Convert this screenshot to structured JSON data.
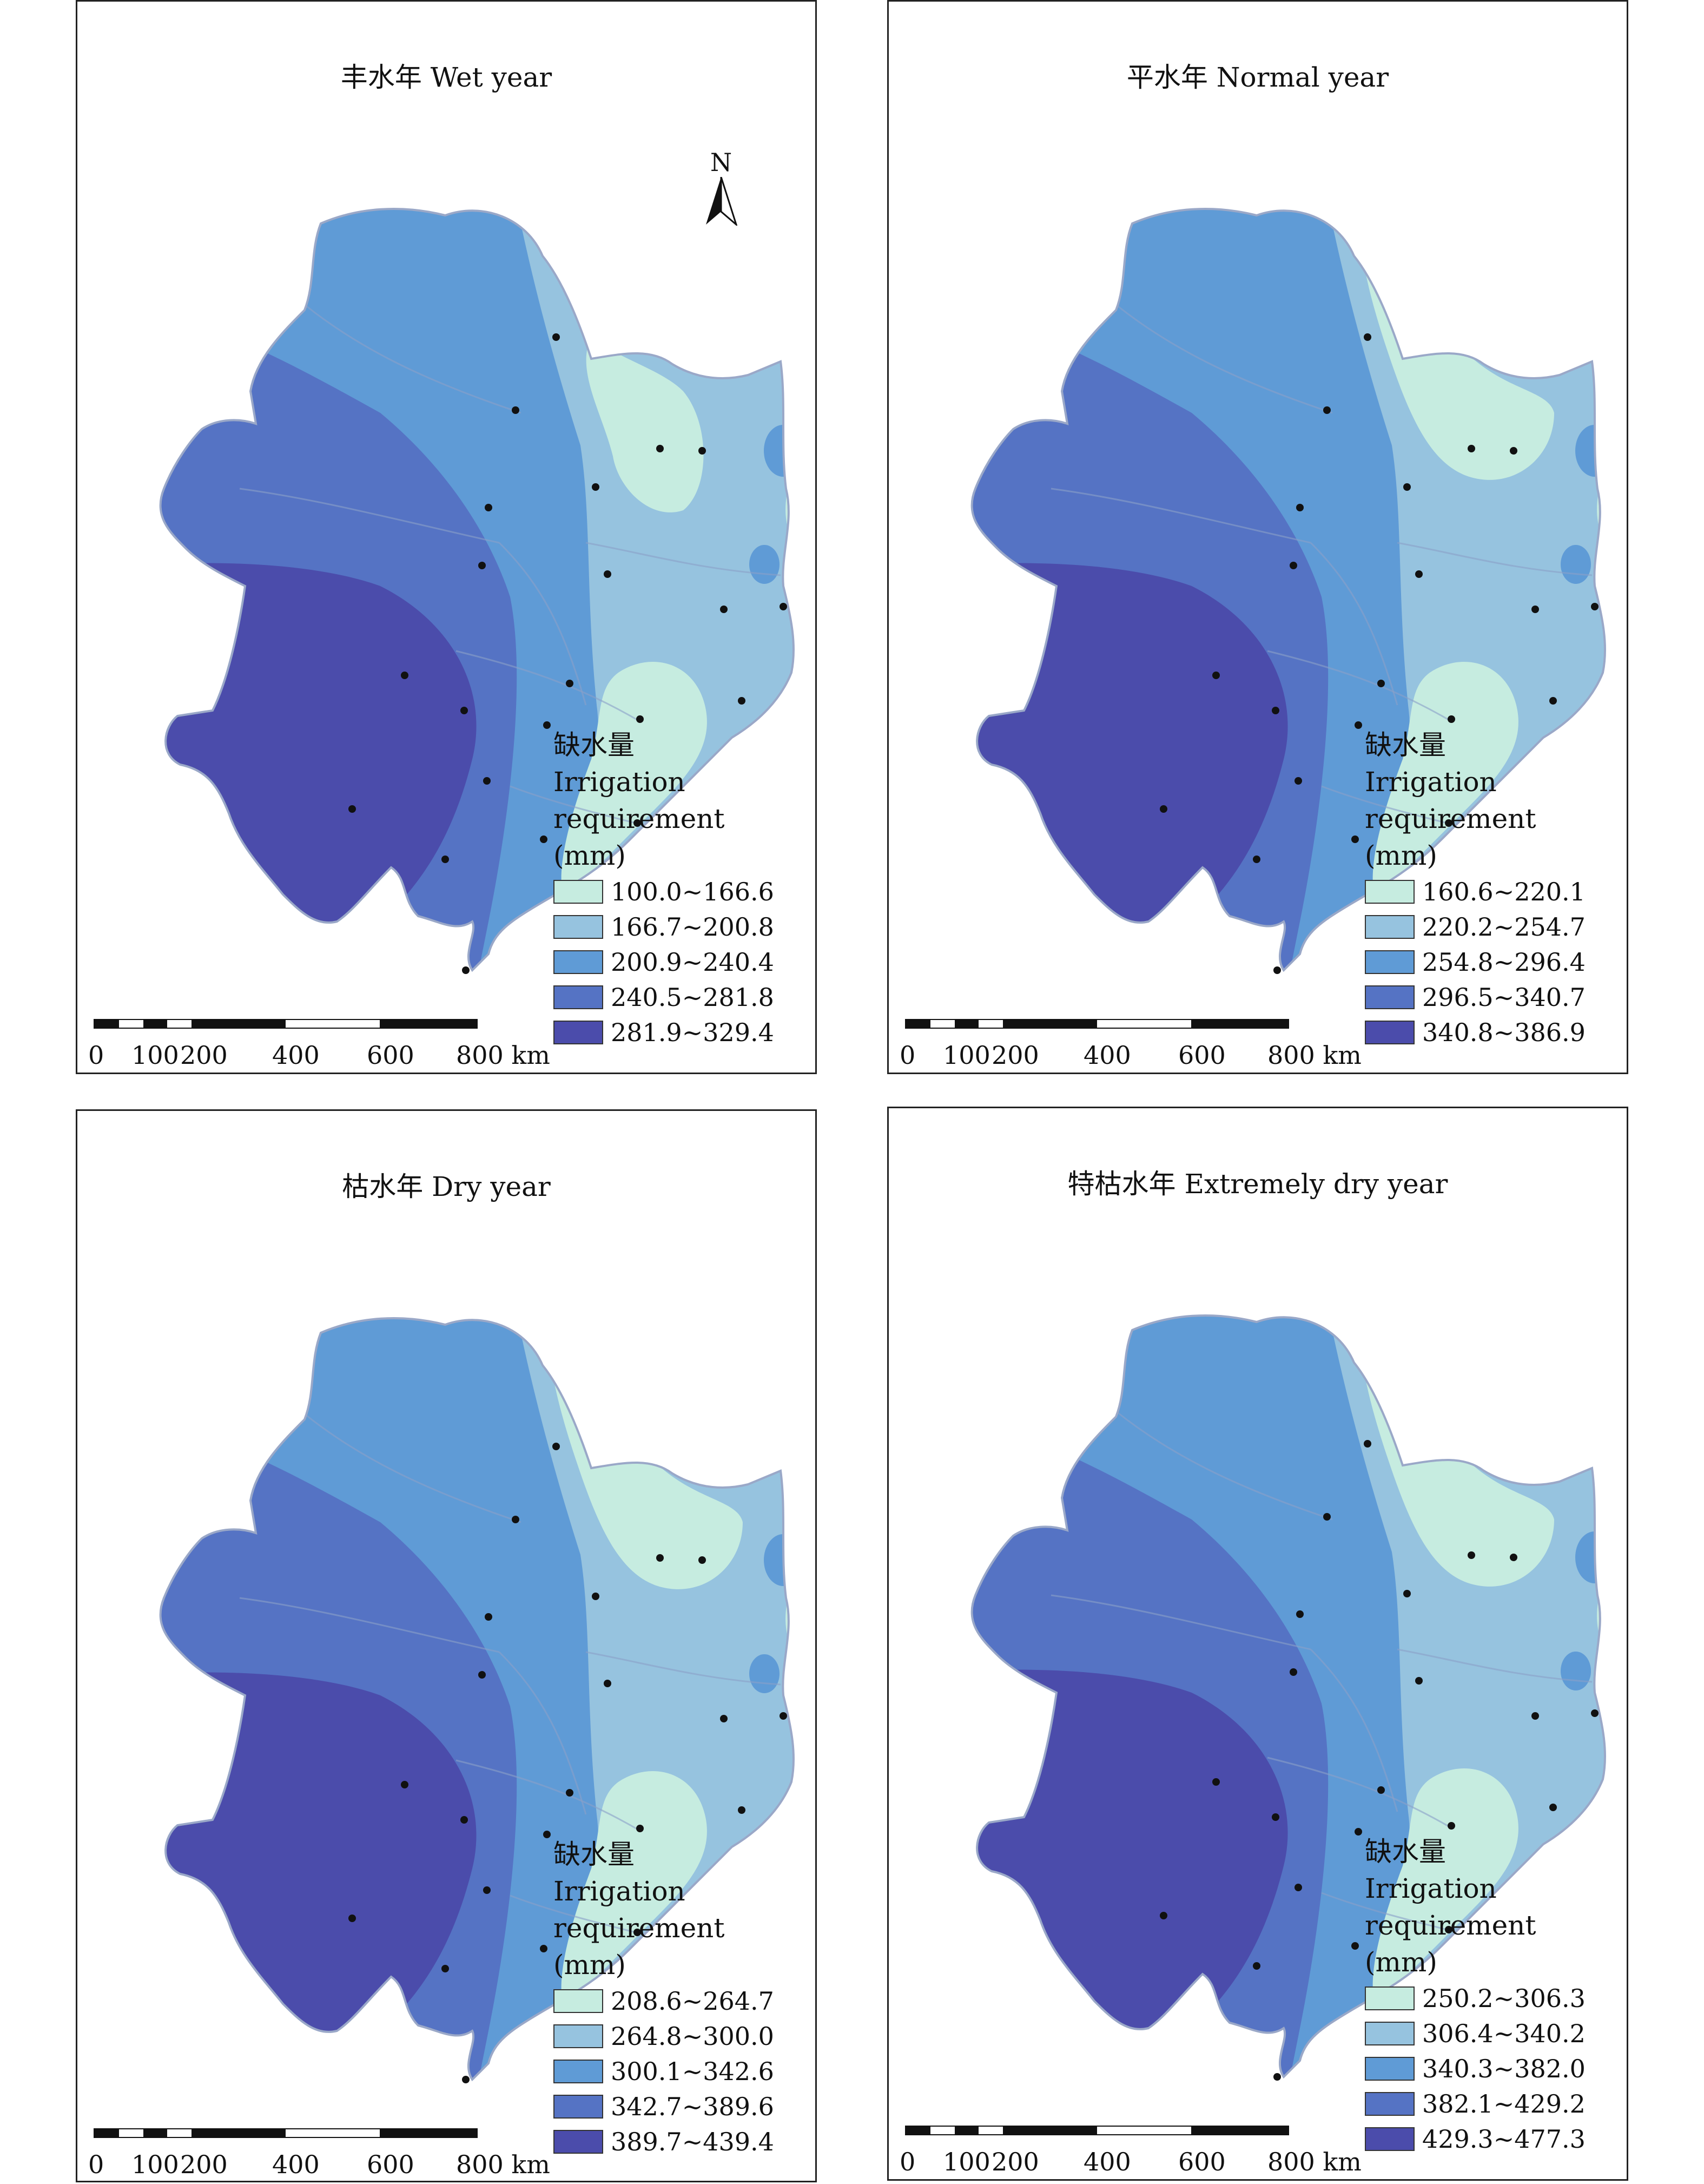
{
  "panels": [
    {
      "title": "丰水年 Wet year",
      "legend_title": [
        "缺水量",
        "Irrigation",
        "requirement",
        "(mm)"
      ],
      "classes": [
        "100.0~166.6",
        "166.7~200.8",
        "200.9~240.4",
        "240.5~281.8",
        "281.9~329.4"
      ],
      "show_north": true
    },
    {
      "title": "平水年 Normal year",
      "legend_title": [
        "缺水量",
        "Irrigation",
        "requirement",
        "(mm)"
      ],
      "classes": [
        "160.6~220.1",
        "220.2~254.7",
        "254.8~296.4",
        "296.5~340.7",
        "340.8~386.9"
      ],
      "show_north": false
    },
    {
      "title": "枯水年 Dry year",
      "legend_title": [
        "缺水量",
        "Irrigation",
        "requirement",
        "(mm)"
      ],
      "classes": [
        "208.6~264.7",
        "264.8~300.0",
        "300.1~342.6",
        "342.7~389.6",
        "389.7~439.4"
      ],
      "show_north": false
    },
    {
      "title": "特枯水年 Extremely dry year",
      "legend_title": [
        "缺水量",
        "Irrigation",
        "requirement",
        "(mm)"
      ],
      "classes": [
        "250.2~306.3",
        "306.4~340.2",
        "340.3~382.0",
        "382.1~429.2",
        "429.3~477.3"
      ],
      "show_north": false
    }
  ],
  "north_label": "N",
  "scale_labels": [
    "0",
    "100",
    "200",
    "400",
    "600",
    "800 km"
  ],
  "colors": {
    "class1": "#c6ece0",
    "class2": "#96c3df",
    "class3": "#5f9bd6",
    "class4": "#5573c4",
    "class5": "#4b4cab",
    "station": "#111111"
  }
}
